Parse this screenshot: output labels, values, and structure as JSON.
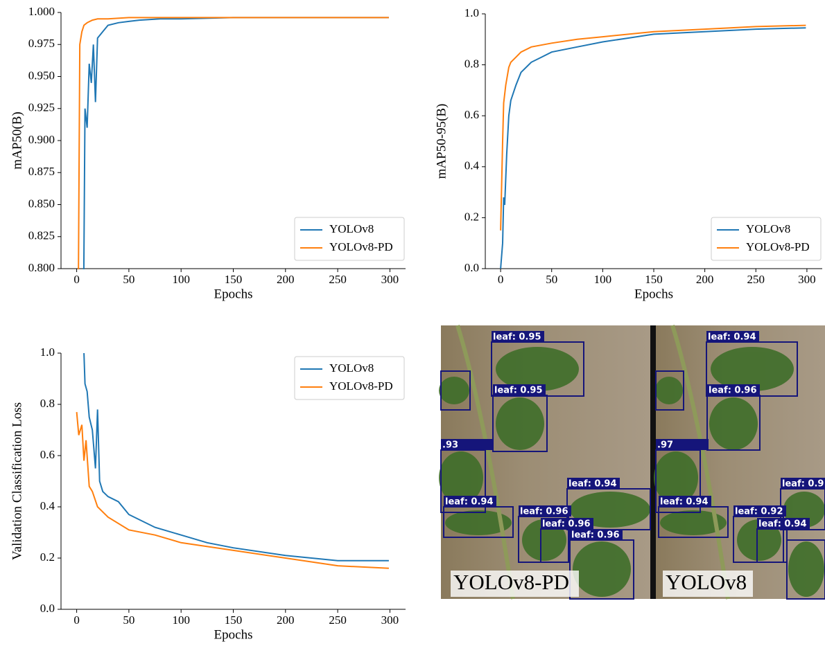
{
  "chart_data": [
    {
      "type": "line",
      "xlabel": "Epochs",
      "ylabel": "mAP50(B)",
      "legend": "lower right",
      "xlim": [
        -15,
        315
      ],
      "xticks": [
        0,
        50,
        100,
        150,
        200,
        250,
        300
      ],
      "ylim": [
        0.8,
        1.0
      ],
      "yticks": [
        {
          "value": 0.8,
          "label": "0.800"
        },
        0.825,
        {
          "value": 0.85,
          "label": "0.850"
        },
        0.875,
        {
          "value": 0.9,
          "label": "0.900"
        },
        0.925,
        {
          "value": 0.95,
          "label": "0.950"
        },
        0.975,
        {
          "value": 1.0,
          "label": "1.000"
        }
      ],
      "series": [
        {
          "name": "YOLOv8",
          "color": "#1f77b4",
          "x": [
            6,
            8,
            10,
            12,
            14,
            16,
            18,
            20,
            25,
            30,
            40,
            50,
            60,
            80,
            100,
            150,
            200,
            250,
            299
          ],
          "values": [
            0.7,
            0.925,
            0.91,
            0.96,
            0.945,
            0.975,
            0.93,
            0.98,
            0.985,
            0.99,
            0.992,
            0.993,
            0.994,
            0.995,
            0.995,
            0.996,
            0.996,
            0.996,
            0.996
          ]
        },
        {
          "name": "YOLOv8-PD",
          "color": "#ff7f0e",
          "x": [
            1,
            3,
            5,
            7,
            10,
            15,
            20,
            30,
            50,
            100,
            150,
            200,
            250,
            299
          ],
          "values": [
            0.7,
            0.975,
            0.985,
            0.99,
            0.992,
            0.994,
            0.995,
            0.995,
            0.996,
            0.996,
            0.996,
            0.996,
            0.996,
            0.996
          ]
        }
      ]
    },
    {
      "type": "line",
      "xlabel": "Epochs",
      "ylabel": "mAP50-95(B)",
      "legend": "lower right",
      "xlim": [
        -15,
        315
      ],
      "xticks": [
        0,
        50,
        100,
        150,
        200,
        250,
        300
      ],
      "ylim": [
        0,
        1.0
      ],
      "yticks": [
        {
          "value": 0,
          "label": "0.0"
        },
        0.2,
        0.4,
        0.6,
        0.8,
        {
          "value": 1.0,
          "label": "1.0"
        }
      ],
      "series": [
        {
          "name": "YOLOv8",
          "color": "#1f77b4",
          "x": [
            0,
            2,
            3,
            4,
            6,
            8,
            10,
            15,
            20,
            30,
            40,
            50,
            75,
            100,
            125,
            150,
            200,
            250,
            299
          ],
          "values": [
            0.0,
            0.1,
            0.28,
            0.25,
            0.45,
            0.6,
            0.66,
            0.72,
            0.77,
            0.81,
            0.83,
            0.85,
            0.87,
            0.89,
            0.905,
            0.92,
            0.93,
            0.94,
            0.945
          ]
        },
        {
          "name": "YOLOv8-PD",
          "color": "#ff7f0e",
          "x": [
            0,
            2,
            3,
            5,
            8,
            10,
            15,
            20,
            30,
            50,
            75,
            100,
            150,
            200,
            250,
            299
          ],
          "values": [
            0.15,
            0.5,
            0.65,
            0.72,
            0.79,
            0.81,
            0.83,
            0.85,
            0.87,
            0.885,
            0.9,
            0.91,
            0.93,
            0.94,
            0.95,
            0.955
          ]
        }
      ]
    },
    {
      "type": "line",
      "xlabel": "Epochs",
      "ylabel": "Validation Classification Loss",
      "legend": "upper right",
      "xlim": [
        -15,
        315
      ],
      "xticks": [
        0,
        50,
        100,
        150,
        200,
        250,
        300
      ],
      "ylim": [
        0,
        1.0
      ],
      "yticks": [
        {
          "value": 0,
          "label": "0.0"
        },
        0.2,
        0.4,
        0.6,
        0.8,
        {
          "value": 1.0,
          "label": "1.0"
        }
      ],
      "series": [
        {
          "name": "YOLOv8",
          "color": "#1f77b4",
          "x": [
            7,
            8,
            10,
            12,
            15,
            18,
            20,
            22,
            25,
            30,
            40,
            50,
            75,
            100,
            125,
            150,
            200,
            250,
            299
          ],
          "values": [
            1.0,
            0.88,
            0.85,
            0.75,
            0.7,
            0.55,
            0.78,
            0.5,
            0.46,
            0.44,
            0.42,
            0.37,
            0.32,
            0.29,
            0.26,
            0.24,
            0.21,
            0.19,
            0.19
          ]
        },
        {
          "name": "YOLOv8-PD",
          "color": "#ff7f0e",
          "x": [
            0,
            2,
            5,
            7,
            9,
            12,
            15,
            20,
            30,
            50,
            75,
            100,
            150,
            200,
            250,
            299
          ],
          "values": [
            0.77,
            0.68,
            0.72,
            0.58,
            0.66,
            0.48,
            0.46,
            0.4,
            0.36,
            0.31,
            0.29,
            0.26,
            0.23,
            0.2,
            0.17,
            0.16
          ]
        }
      ]
    }
  ],
  "detection_panel": {
    "left": {
      "caption": "YOLOv8-PD",
      "labels": [
        "leaf: 0.95",
        "leaf: 0.95",
        ".93",
        "leaf: 0.94",
        "leaf: 0.94",
        "leaf: 0.96",
        "leaf: 0.96",
        "leaf: 0.96"
      ]
    },
    "right": {
      "caption": "YOLOv8",
      "labels": [
        "leaf: 0.94",
        "leaf: 0.96",
        ".97",
        "leaf: 0.94",
        "leaf: 0.9",
        "leaf: 0.92",
        "leaf: 0.94"
      ]
    }
  }
}
